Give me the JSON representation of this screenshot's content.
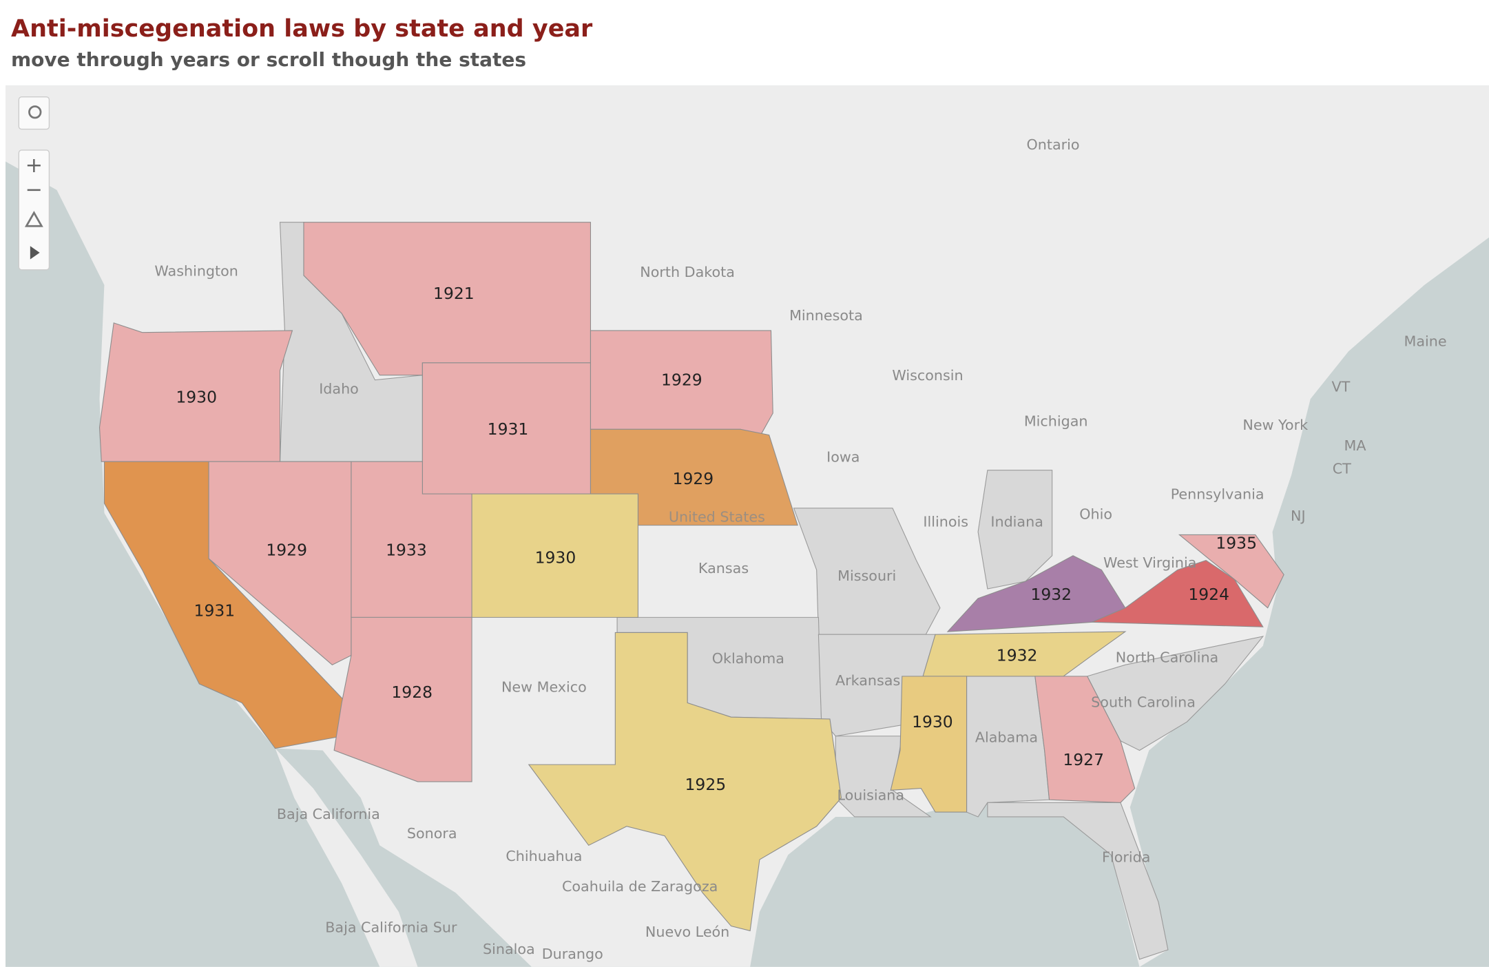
{
  "header": {
    "title": "Anti-miscegenation laws by state and year",
    "subtitle": "move through years or scroll though the states"
  },
  "map": {
    "states": [
      {
        "label": "1921",
        "color": "#e9aeae"
      },
      {
        "label": "1930",
        "color": "#e9aeae"
      },
      {
        "label": "1931",
        "color": "#e9aeae"
      },
      {
        "label": "1929",
        "color": "#e9aeae"
      },
      {
        "label": "1929",
        "color": "#e0a060"
      },
      {
        "label": "1931",
        "color": "#e0944f"
      },
      {
        "label": "1929",
        "color": "#e9aeae"
      },
      {
        "label": "1933",
        "color": "#e9aeae"
      },
      {
        "label": "1930",
        "color": "#e8d38a"
      },
      {
        "label": "1928",
        "color": "#e9aeae"
      },
      {
        "label": "1925",
        "color": "#e8d38a"
      },
      {
        "label": "1932",
        "color": "#a87fa8"
      },
      {
        "label": "1924",
        "color": "#d9696b"
      },
      {
        "label": "1935",
        "color": "#e9aeae"
      },
      {
        "label": "1932",
        "color": "#e8d38a"
      },
      {
        "label": "1930",
        "color": "#e8cb80"
      },
      {
        "label": "1927",
        "color": "#e9aeae"
      }
    ],
    "labels": [
      "Washington",
      "Idaho",
      "North Dakota",
      "Minnesota",
      "Wisconsin",
      "Michigan",
      "Iowa",
      "Illinois",
      "Indiana",
      "Ohio",
      "Pennsylvania",
      "New York",
      "Kansas",
      "Missouri",
      "Oklahoma",
      "Arkansas",
      "New Mexico",
      "Alabama",
      "Louisiana",
      "Ontario",
      "Maine",
      "VT",
      "MA",
      "CT",
      "NJ",
      "West Virginia",
      "North Carolina",
      "South Carolina",
      "Florida",
      "Sonora",
      "Chihuahua",
      "Coahuila de Zaragoza",
      "Baja California",
      "Baja California Sur",
      "Nuevo León",
      "Sinaloa",
      "Durango",
      "United States"
    ]
  }
}
